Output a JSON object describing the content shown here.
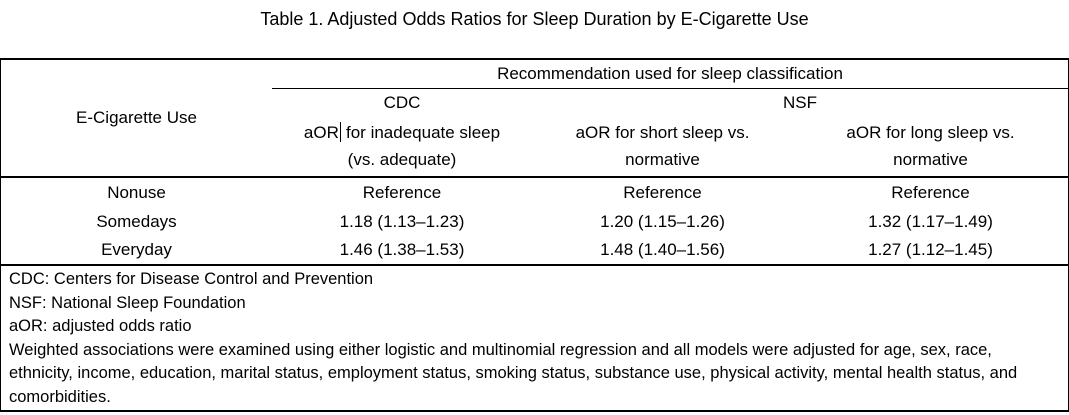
{
  "title": "Table 1. Adjusted Odds Ratios for Sleep Duration by E-Cigarette Use",
  "table": {
    "row_header": "E-Cigarette Use",
    "span_header": "Recommendation used for sleep classification",
    "group_headers": [
      {
        "label": "CDC"
      },
      {
        "label": "NSF"
      }
    ],
    "column_headers": [
      {
        "line1_before_caret": "aOR",
        "line1_after_caret": " for inadequate sleep",
        "line2": "(vs. adequate)"
      },
      {
        "line1": "aOR for short sleep vs.",
        "line2": "normative"
      },
      {
        "line1": "aOR for long sleep vs.",
        "line2": "normative"
      }
    ],
    "rows": [
      {
        "label": "Nonuse",
        "values": [
          "Reference",
          "Reference",
          "Reference"
        ]
      },
      {
        "label": "Somedays",
        "values": [
          "1.18 (1.13–1.23)",
          "1.20 (1.15–1.26)",
          "1.32 (1.17–1.49)"
        ]
      },
      {
        "label": "Everyday",
        "values": [
          "1.46 (1.38–1.53)",
          "1.48 (1.40–1.56)",
          "1.27 (1.12–1.45)"
        ]
      }
    ],
    "footnotes": [
      "CDC: Centers for Disease Control and Prevention",
      "NSF: National Sleep Foundation",
      "aOR: adjusted odds ratio",
      "Weighted associations were examined using either logistic and multinomial regression and all models were adjusted for age, sex, race, ethnicity, income, education, marital status, employment status, smoking status, substance use, physical activity, mental health status, and comorbidities."
    ]
  },
  "colors": {
    "text": "#000000",
    "background": "#ffffff",
    "border": "#000000"
  }
}
